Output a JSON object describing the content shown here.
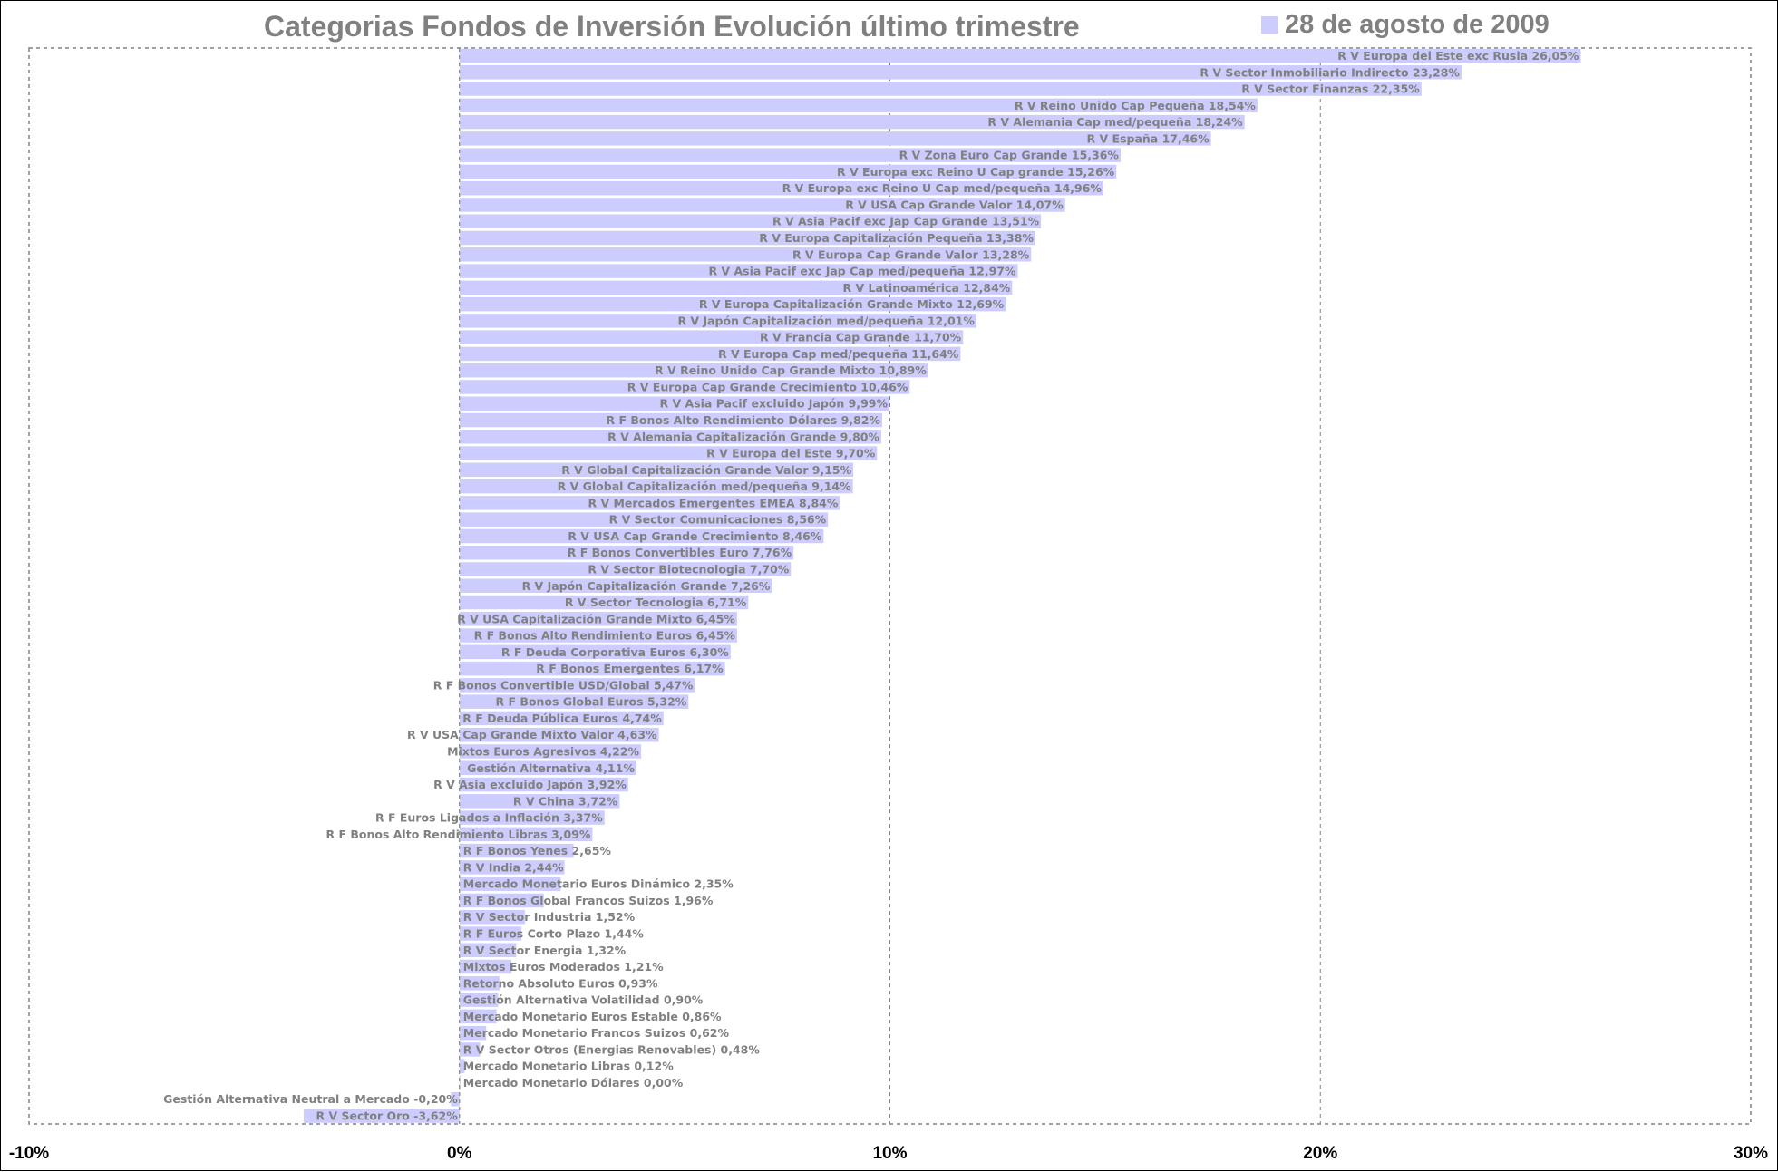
{
  "chart_data": {
    "type": "bar",
    "orientation": "horizontal",
    "title": "Categorias Fondos de Inversión Evolución último trimestre",
    "series": [
      {
        "name": "28 de agosto de 2009",
        "color": "#ccccff"
      }
    ],
    "legend_position": "top-right",
    "grid": true,
    "xlim": [
      -10,
      30
    ],
    "x_ticks": [
      {
        "value": -10,
        "label": "-10%"
      },
      {
        "value": 0,
        "label": "0%"
      },
      {
        "value": 10,
        "label": "10%"
      },
      {
        "value": 20,
        "label": "20%"
      },
      {
        "value": 30,
        "label": "30%"
      }
    ],
    "bars": [
      {
        "category": "R V Europa del Este exc Rusia",
        "value": 26.05,
        "label": "R V Europa del Este exc Rusia 26,05%"
      },
      {
        "category": "R V Sector Inmobiliario Indirecto",
        "value": 23.28,
        "label": "R V Sector Inmobiliario Indirecto 23,28%"
      },
      {
        "category": "R V Sector Finanzas",
        "value": 22.35,
        "label": "R V Sector Finanzas 22,35%"
      },
      {
        "category": "R V Reino Unido Cap Pequeña",
        "value": 18.54,
        "label": "R V Reino Unido Cap Pequeña 18,54%"
      },
      {
        "category": "R V Alemania Cap med/pequeña",
        "value": 18.24,
        "label": "R V Alemania Cap med/pequeña 18,24%"
      },
      {
        "category": "R V España",
        "value": 17.46,
        "label": "R V España 17,46%"
      },
      {
        "category": "R V Zona Euro Cap Grande",
        "value": 15.36,
        "label": "R V Zona Euro Cap Grande 15,36%"
      },
      {
        "category": "R V Europa exc Reino U Cap grande",
        "value": 15.26,
        "label": "R V Europa exc Reino U Cap grande 15,26%"
      },
      {
        "category": "R V Europa exc Reino U Cap med/pequeña",
        "value": 14.96,
        "label": "R V Europa exc Reino U Cap med/pequeña 14,96%"
      },
      {
        "category": "R V USA Cap Grande Valor",
        "value": 14.07,
        "label": "R V USA Cap Grande Valor 14,07%"
      },
      {
        "category": "R V Asia Pacif exc Jap Cap Grande",
        "value": 13.51,
        "label": "R V Asia Pacif exc Jap Cap Grande 13,51%"
      },
      {
        "category": "R V Europa Capitalización Pequeña",
        "value": 13.38,
        "label": "R V Europa Capitalización Pequeña 13,38%"
      },
      {
        "category": "R V Europa Cap Grande Valor",
        "value": 13.28,
        "label": "R V Europa Cap Grande Valor 13,28%"
      },
      {
        "category": "R V Asia Pacif exc Jap Cap med/pequeña",
        "value": 12.97,
        "label": "R V Asia Pacif exc Jap Cap med/pequeña 12,97%"
      },
      {
        "category": "R V Latinoamérica",
        "value": 12.84,
        "label": "R V Latinoamérica 12,84%"
      },
      {
        "category": "R V Europa Capitalización Grande Mixto",
        "value": 12.69,
        "label": "R V Europa Capitalización Grande Mixto 12,69%"
      },
      {
        "category": "R V Japón Capitalización med/pequeña",
        "value": 12.01,
        "label": "R V Japón Capitalización med/pequeña 12,01%"
      },
      {
        "category": "R V Francia Cap Grande",
        "value": 11.7,
        "label": "R V Francia Cap Grande 11,70%"
      },
      {
        "category": "R V Europa Cap med/pequeña",
        "value": 11.64,
        "label": "R V Europa Cap med/pequeña 11,64%"
      },
      {
        "category": "R V Reino Unido Cap Grande Mixto",
        "value": 10.89,
        "label": "R V Reino Unido Cap Grande Mixto 10,89%"
      },
      {
        "category": "R V Europa Cap Grande Crecimiento",
        "value": 10.46,
        "label": "R V Europa Cap Grande Crecimiento 10,46%"
      },
      {
        "category": "R V Asia Pacif excluido Japón",
        "value": 9.99,
        "label": "R V Asia Pacif excluido Japón 9,99%"
      },
      {
        "category": "R F Bonos Alto Rendimiento Dólares",
        "value": 9.82,
        "label": "R F Bonos Alto Rendimiento Dólares 9,82%"
      },
      {
        "category": "R V Alemania Capitalización Grande",
        "value": 9.8,
        "label": "R V Alemania Capitalización Grande 9,80%"
      },
      {
        "category": "R V Europa del Este",
        "value": 9.7,
        "label": "R V Europa del Este 9,70%"
      },
      {
        "category": "R V Global Capitalización Grande Valor",
        "value": 9.15,
        "label": "R V Global Capitalización Grande Valor 9,15%"
      },
      {
        "category": "R V Global Capitalización med/pequeña",
        "value": 9.14,
        "label": "R V Global Capitalización med/pequeña 9,14%"
      },
      {
        "category": "R V Mercados Emergentes EMEA",
        "value": 8.84,
        "label": "R V Mercados Emergentes EMEA 8,84%"
      },
      {
        "category": "R V Sector Comunicaciones",
        "value": 8.56,
        "label": "R V Sector Comunicaciones 8,56%"
      },
      {
        "category": "R V USA Cap Grande Crecimiento",
        "value": 8.46,
        "label": "R V USA Cap Grande Crecimiento 8,46%"
      },
      {
        "category": "R F Bonos Convertibles Euro",
        "value": 7.76,
        "label": "R F Bonos Convertibles Euro 7,76%"
      },
      {
        "category": "R V Sector Biotecnologia",
        "value": 7.7,
        "label": "R V Sector Biotecnologia 7,70%"
      },
      {
        "category": "R V Japón Capitalización Grande",
        "value": 7.26,
        "label": "R V Japón Capitalización Grande 7,26%"
      },
      {
        "category": "R V Sector Tecnologia",
        "value": 6.71,
        "label": "R V Sector Tecnologia 6,71%"
      },
      {
        "category": "R V USA Capitalización Grande Mixto",
        "value": 6.45,
        "label": "R V USA Capitalización Grande Mixto 6,45%"
      },
      {
        "category": "R F Bonos Alto Rendimiento Euros",
        "value": 6.45,
        "label": "R F Bonos Alto Rendimiento Euros 6,45%"
      },
      {
        "category": "R F Deuda Corporativa Euros",
        "value": 6.3,
        "label": "R F Deuda Corporativa Euros 6,30%"
      },
      {
        "category": "R F Bonos Emergentes",
        "value": 6.17,
        "label": "R F Bonos Emergentes 6,17%"
      },
      {
        "category": "R F Bonos Convertible USD/Global",
        "value": 5.47,
        "label": "R F Bonos Convertible USD/Global 5,47%"
      },
      {
        "category": "R F Bonos Global Euros",
        "value": 5.32,
        "label": "R F Bonos Global Euros 5,32%"
      },
      {
        "category": "R F Deuda Pública Euros",
        "value": 4.74,
        "label": "R F Deuda Pública Euros 4,74%"
      },
      {
        "category": "R V USA Cap Grande Mixto Valor",
        "value": 4.63,
        "label": "R V USA Cap Grande Mixto Valor 4,63%"
      },
      {
        "category": "Mixtos Euros Agresivos",
        "value": 4.22,
        "label": "Mixtos Euros Agresivos 4,22%"
      },
      {
        "category": "Gestión Alternativa",
        "value": 4.11,
        "label": "Gestión Alternativa 4,11%"
      },
      {
        "category": "R V Asia excluido Japón",
        "value": 3.92,
        "label": "R V Asia excluido Japón 3,92%"
      },
      {
        "category": "R V China",
        "value": 3.72,
        "label": "R V China 3,72%"
      },
      {
        "category": "R F Euros Ligados a Inflación",
        "value": 3.37,
        "label": "R F Euros Ligados a Inflación 3,37%"
      },
      {
        "category": "R F Bonos Alto Rendimiento Libras",
        "value": 3.09,
        "label": "R F Bonos Alto Rendimiento Libras 3,09%"
      },
      {
        "category": "R F Bonos Yenes",
        "value": 2.65,
        "label": "R F Bonos Yenes 2,65%"
      },
      {
        "category": "R V India",
        "value": 2.44,
        "label": "R V India 2,44%"
      },
      {
        "category": "Mercado Monetario Euros Dinámico",
        "value": 2.35,
        "label": "Mercado Monetario Euros Dinámico 2,35%"
      },
      {
        "category": "R F Bonos Global Francos Suizos",
        "value": 1.96,
        "label": "R F Bonos Global Francos Suizos 1,96%"
      },
      {
        "category": "R V Sector Industria",
        "value": 1.52,
        "label": "R V Sector Industria 1,52%"
      },
      {
        "category": "R F Euros Corto Plazo",
        "value": 1.44,
        "label": "R F Euros Corto Plazo 1,44%"
      },
      {
        "category": "R V Sector Energia",
        "value": 1.32,
        "label": "R V Sector Energia 1,32%"
      },
      {
        "category": "Mixtos Euros Moderados",
        "value": 1.21,
        "label": "Mixtos Euros Moderados 1,21%"
      },
      {
        "category": "Retorno Absoluto Euros",
        "value": 0.93,
        "label": "Retorno Absoluto Euros 0,93%"
      },
      {
        "category": "Gestión Alternativa Volatilidad",
        "value": 0.9,
        "label": "Gestión Alternativa Volatilidad 0,90%"
      },
      {
        "category": "Mercado Monetario Euros Estable",
        "value": 0.86,
        "label": "Mercado Monetario Euros Estable 0,86%"
      },
      {
        "category": "Mercado Monetario Francos Suizos",
        "value": 0.62,
        "label": "Mercado Monetario Francos Suizos 0,62%"
      },
      {
        "category": "R V Sector Otros (Energias Renovables)",
        "value": 0.48,
        "label": "R V Sector Otros (Energias Renovables) 0,48%"
      },
      {
        "category": "Mercado Monetario Libras",
        "value": 0.12,
        "label": "Mercado Monetario Libras 0,12%"
      },
      {
        "category": "Mercado Monetario Dólares",
        "value": 0.0,
        "label": "Mercado Monetario Dólares 0,00%"
      },
      {
        "category": "Gestión Alternativa Neutral a Mercado",
        "value": -0.2,
        "label": "Gestión Alternativa Neutral a Mercado -0,20%"
      },
      {
        "category": "R V Sector Oro",
        "value": -3.62,
        "label": "R V Sector Oro -3,62%"
      }
    ]
  }
}
